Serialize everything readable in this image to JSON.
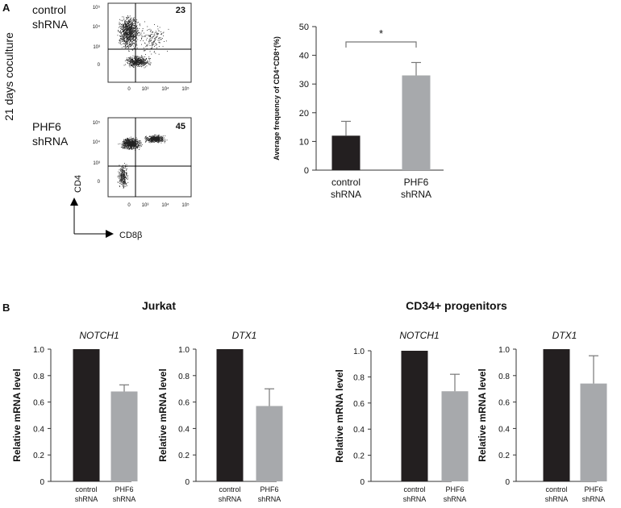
{
  "panels": {
    "a": "A",
    "b": "B"
  },
  "panel_a": {
    "coculture_label": "21 days coculture",
    "flow_plots": [
      {
        "row_label_line1": "control",
        "row_label_line2": "shRNA",
        "quadrant_value": "23",
        "y_ticks": [
          "10⁵",
          "10⁴",
          "10³",
          "0"
        ],
        "x_ticks": [
          "0",
          "10³",
          "10⁴",
          "10⁵"
        ]
      },
      {
        "row_label_line1": "PHF6",
        "row_label_line2": "shRNA",
        "quadrant_value": "45",
        "y_ticks": [
          "10⁵",
          "10⁴",
          "10³",
          "0"
        ],
        "x_ticks": [
          "0",
          "10³",
          "10⁴",
          "10⁵"
        ]
      }
    ],
    "axis_y_label": "CD4",
    "axis_x_label": "CD8β"
  },
  "panel_b": {
    "group_titles": [
      "Jurkat",
      "CD34+ progenitors"
    ]
  },
  "colors": {
    "control": "#231f20",
    "phf6": "#a7a9ac",
    "error": "#777777"
  },
  "chart_data": [
    {
      "type": "bar",
      "title": "",
      "ylabel": "Average frequency of CD4⁺CD8⁺(%)",
      "categories": [
        [
          "control",
          "shRNA"
        ],
        [
          "PHF6",
          "shRNA"
        ]
      ],
      "values": [
        12,
        33
      ],
      "errors": [
        5,
        4.5
      ],
      "ylim": [
        0,
        50
      ],
      "yticks": [
        0,
        10,
        20,
        30,
        40,
        50
      ],
      "significance": {
        "label": "*",
        "between": [
          0,
          1
        ]
      }
    },
    {
      "type": "bar",
      "title": "NOTCH1",
      "group": "Jurkat",
      "ylabel": "Relative mRNA level",
      "categories": [
        [
          "control",
          "shRNA"
        ],
        [
          "PHF6",
          "shRNA"
        ]
      ],
      "values": [
        1.0,
        0.68
      ],
      "errors": [
        0,
        0.05
      ],
      "ylim": [
        0,
        1.0
      ],
      "yticks": [
        "0",
        "0.2",
        "0.4",
        "0.6",
        "0.8",
        "1.0"
      ]
    },
    {
      "type": "bar",
      "title": "DTX1",
      "group": "Jurkat",
      "ylabel": "Relative mRNA level",
      "categories": [
        [
          "control",
          "shRNA"
        ],
        [
          "PHF6",
          "shRNA"
        ]
      ],
      "values": [
        1.0,
        0.57
      ],
      "errors": [
        0,
        0.13
      ],
      "ylim": [
        0,
        1.0
      ],
      "yticks": [
        "0",
        "0.2",
        "0.4",
        "0.6",
        "0.8",
        "1.0"
      ]
    },
    {
      "type": "bar",
      "title": "NOTCH1",
      "group": "CD34+ progenitors",
      "ylabel": "Relative mRNA level",
      "categories": [
        [
          "control",
          "shRNA"
        ],
        [
          "PHF6",
          "shRNA"
        ]
      ],
      "values": [
        1.0,
        0.69
      ],
      "errors": [
        0,
        0.13
      ],
      "ylim": [
        0,
        1.0
      ],
      "yticks": [
        "0",
        "0.2",
        "0.4",
        "0.6",
        "0.8",
        "1.0"
      ]
    },
    {
      "type": "bar",
      "title": "DTX1",
      "group": "CD34+ progenitors",
      "ylabel": "Relative mRNA level",
      "categories": [
        [
          "control",
          "shRNA"
        ],
        [
          "PHF6",
          "shRNA"
        ]
      ],
      "values": [
        1.0,
        0.74
      ],
      "errors": [
        0,
        0.21
      ],
      "ylim": [
        0,
        1.0
      ],
      "yticks": [
        "0",
        "0.2",
        "0.4",
        "0.6",
        "0.8",
        "1.0"
      ]
    }
  ]
}
